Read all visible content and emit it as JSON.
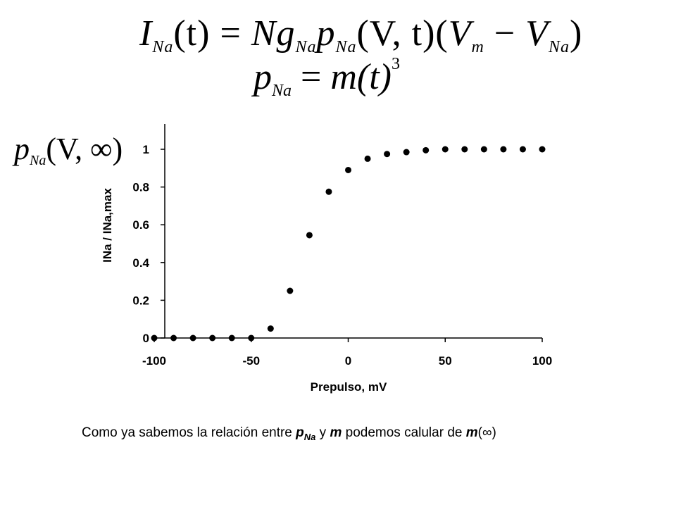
{
  "equations": {
    "eq1": {
      "lhs": "I",
      "lhs_sub": "Na",
      "t_arg": "(t)",
      "equals": " = ",
      "N": "N",
      "g": "g",
      "g_sub": "Na",
      "p": "p",
      "p_sub": "Na",
      "args": "(V, t)",
      "paren_open": "(",
      "Vm": "V",
      "Vm_sub": "m",
      "minus": " − ",
      "VNa": "V",
      "VNa_sub": "Na",
      "paren_close": ")"
    },
    "eq2": {
      "p": "p",
      "p_sub": "Na",
      "equals": " = ",
      "rhs": "m(t)",
      "exp": "3"
    }
  },
  "side_label": {
    "p": "p",
    "sub": "Na",
    "args": "(V, ∞)"
  },
  "caption": {
    "t1": "Como ya sabemos la relación  entre ",
    "p": "p",
    "p_sub": "Na",
    "t2": "  y ",
    "m": "m",
    "t3": " podemos calular de ",
    "m2": "m",
    "t4": "(∞)"
  },
  "chart_data": {
    "type": "scatter",
    "xlabel": "Prepulso, mV",
    "ylabel": "INa / INa,max",
    "xlim": [
      -100,
      100
    ],
    "ylim": [
      0,
      1.12
    ],
    "xticks": [
      -100,
      -50,
      0,
      50,
      100
    ],
    "xtick_labels": [
      "-100",
      "-50",
      "0",
      "50",
      "100"
    ],
    "yticks": [
      0,
      0.2,
      0.4,
      0.6,
      0.8,
      1
    ],
    "ytick_labels": [
      "0",
      "0.2",
      "0.4",
      "0.6",
      "0.8",
      "1"
    ],
    "grid": false,
    "marker_color": "#000000",
    "points": [
      {
        "x": -100,
        "y": 0
      },
      {
        "x": -90,
        "y": 0
      },
      {
        "x": -80,
        "y": 0
      },
      {
        "x": -70,
        "y": 0
      },
      {
        "x": -60,
        "y": 0
      },
      {
        "x": -50,
        "y": 0
      },
      {
        "x": -40,
        "y": 0.05
      },
      {
        "x": -30,
        "y": 0.25
      },
      {
        "x": -20,
        "y": 0.545
      },
      {
        "x": -10,
        "y": 0.775
      },
      {
        "x": 0,
        "y": 0.89
      },
      {
        "x": 10,
        "y": 0.95
      },
      {
        "x": 20,
        "y": 0.975
      },
      {
        "x": 30,
        "y": 0.985
      },
      {
        "x": 40,
        "y": 0.995
      },
      {
        "x": 50,
        "y": 1
      },
      {
        "x": 60,
        "y": 1
      },
      {
        "x": 70,
        "y": 1
      },
      {
        "x": 80,
        "y": 1
      },
      {
        "x": 90,
        "y": 1
      },
      {
        "x": 100,
        "y": 1
      }
    ]
  }
}
